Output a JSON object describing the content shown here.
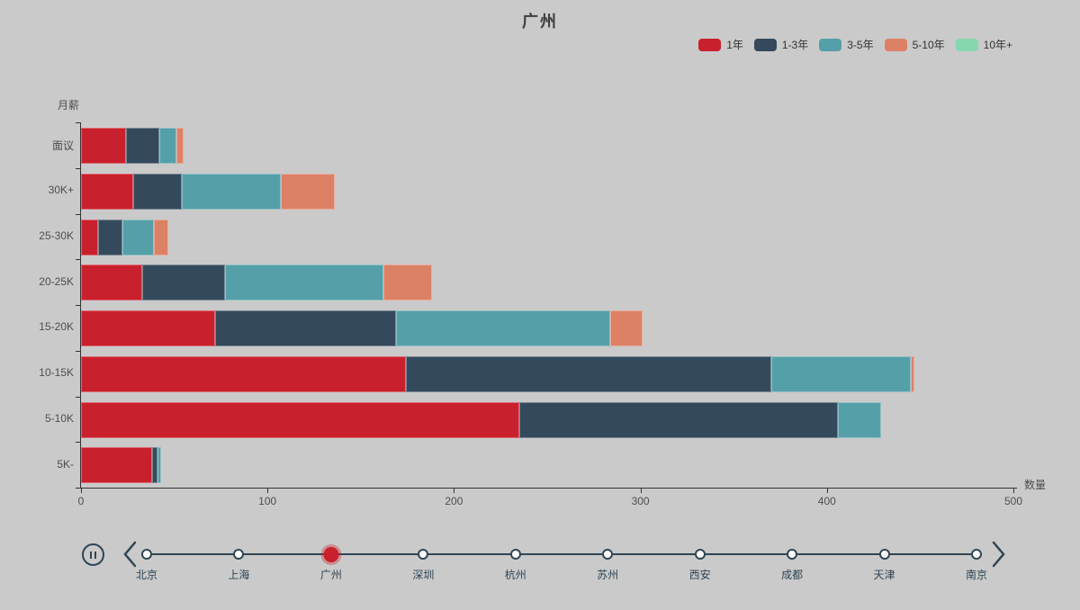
{
  "header": {
    "title": "广州"
  },
  "chart_data": {
    "type": "bar",
    "orientation": "horizontal",
    "stacked": true,
    "title": "广州",
    "xlabel": "数量",
    "ylabel": "月薪",
    "xlim": [
      0,
      500
    ],
    "x_ticks": [
      "0",
      "100",
      "200",
      "300",
      "400",
      "500"
    ],
    "grid": false,
    "legend_position": "top-right",
    "categories": [
      "面议",
      "30K+",
      "25-30K",
      "20-25K",
      "15-20K",
      "10-15K",
      "5-10K",
      "5K-"
    ],
    "series": [
      {
        "name": "1年",
        "color": "#c9202d",
        "values": [
          24,
          28,
          9,
          33,
          72,
          174,
          235,
          38
        ]
      },
      {
        "name": "1-3年",
        "color": "#344a5c",
        "values": [
          18,
          26,
          13,
          44,
          97,
          196,
          171,
          3
        ]
      },
      {
        "name": "3-5年",
        "color": "#55a0a8",
        "values": [
          9,
          53,
          17,
          85,
          115,
          75,
          23,
          2
        ]
      },
      {
        "name": "5-10年",
        "color": "#dc8166",
        "values": [
          4,
          29,
          8,
          26,
          17,
          2,
          0,
          0
        ]
      },
      {
        "name": "10年+",
        "color": "#86d6ae",
        "values": [
          0,
          0,
          0,
          0,
          0,
          0,
          0,
          0
        ]
      }
    ]
  },
  "timeline": {
    "items": [
      "北京",
      "上海",
      "广州",
      "深圳",
      "杭州",
      "苏州",
      "西安",
      "成都",
      "天津",
      "南京"
    ],
    "current": "广州",
    "current_index": 2,
    "state": "playing",
    "checkpoint_color": "#c9202d",
    "line_color": "#2f4554",
    "icons": [
      "pause-icon",
      "chevron-left-icon",
      "chevron-right-icon"
    ]
  },
  "colors": {
    "background": "#cacaca",
    "axis": "#333333",
    "axis_text": "#4d4d4d",
    "title_text": "#3d3d3d",
    "timeline": "#2f4554"
  }
}
